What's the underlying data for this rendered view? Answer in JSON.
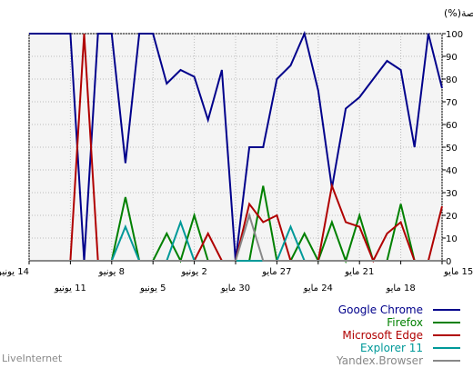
{
  "chart_data": {
    "type": "line",
    "ylabel": "الحصة(%)",
    "ylim": [
      0,
      100
    ],
    "yticks": [
      0,
      10,
      20,
      30,
      40,
      50,
      60,
      70,
      80,
      90,
      100
    ],
    "x_axis_labels": [
      {
        "label": "14 يونيو",
        "row": 1
      },
      {
        "label": "11 يونيو",
        "row": 2
      },
      {
        "label": "8 يونيو",
        "row": 1
      },
      {
        "label": "5 يونيو",
        "row": 2
      },
      {
        "label": "2 يونيو",
        "row": 1
      },
      {
        "label": "30 مايو",
        "row": 2
      },
      {
        "label": "27 مايو",
        "row": 1
      },
      {
        "label": "24 مايو",
        "row": 2
      },
      {
        "label": "21 مايو",
        "row": 1
      },
      {
        "label": "18 مايو",
        "row": 2
      },
      {
        "label": "15 مايو",
        "row": 1
      }
    ],
    "x_order": "reversed (newest date at left)",
    "grid": true,
    "legend_position": "bottom-right",
    "series": [
      {
        "name": "Google Chrome",
        "color": "#00008b",
        "values": [
          100,
          100,
          100,
          100,
          0,
          100,
          100,
          43,
          100,
          100,
          78,
          84,
          81,
          62,
          84,
          0,
          50,
          50,
          80,
          86,
          100,
          75,
          32,
          67,
          72,
          80,
          88,
          84,
          50,
          100,
          76
        ]
      },
      {
        "name": "Firefox",
        "color": "#008000",
        "values": [
          0,
          0,
          0,
          0,
          0,
          0,
          0,
          28,
          0,
          0,
          12,
          0,
          20,
          0,
          0,
          0,
          0,
          33,
          0,
          0,
          12,
          0,
          17,
          0,
          20,
          0,
          0,
          25,
          0,
          0,
          0
        ]
      },
      {
        "name": "Microsoft Edge",
        "color": "#b00000",
        "values": [
          0,
          0,
          0,
          0,
          100,
          0,
          0,
          0,
          0,
          0,
          0,
          0,
          0,
          12,
          0,
          0,
          25,
          17,
          20,
          0,
          0,
          0,
          33,
          17,
          15,
          0,
          12,
          17,
          0,
          0,
          24
        ]
      },
      {
        "name": "Explorer 11",
        "color": "#009999",
        "values": [
          0,
          0,
          0,
          0,
          0,
          0,
          0,
          15,
          0,
          0,
          0,
          17,
          0,
          0,
          0,
          0,
          0,
          0,
          0,
          15,
          0,
          0,
          0,
          0,
          0,
          0,
          0,
          0,
          0,
          0,
          0
        ]
      },
      {
        "name": "Yandex.Browser",
        "color": "#888888",
        "values": [
          0,
          0,
          0,
          0,
          0,
          0,
          0,
          0,
          0,
          0,
          0,
          0,
          0,
          0,
          0,
          0,
          20,
          0,
          0,
          0,
          0,
          0,
          0,
          0,
          0,
          0,
          0,
          0,
          0,
          0,
          0
        ]
      }
    ]
  },
  "footer": {
    "source": "LiveInternet"
  }
}
